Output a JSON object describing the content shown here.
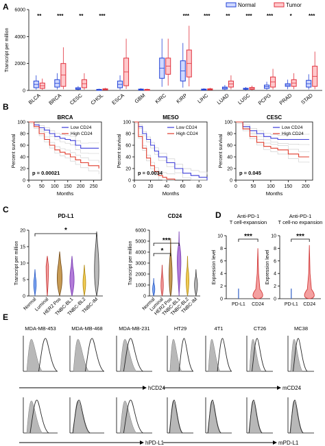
{
  "panels": {
    "A": {
      "letter": "A",
      "ylabel": "Transcript per million",
      "yticks": [
        "0",
        "2000",
        "4000",
        "6000"
      ],
      "legend": [
        {
          "name": "Normal",
          "color": "#1f3fd6"
        },
        {
          "name": "Tumor",
          "color": "#e0303c"
        }
      ],
      "categories": [
        "BLCA",
        "BRCA",
        "CESC",
        "CHOL",
        "ESCA",
        "GBM",
        "KIRC",
        "KIRP",
        "LIHC",
        "LUAD",
        "LUSC",
        "PCPG",
        "PRAD",
        "STAD"
      ],
      "significance": [
        "**",
        "***",
        "**",
        "***",
        "",
        "",
        "",
        "***",
        "***",
        "**",
        "***",
        "***",
        "*",
        "***"
      ]
    },
    "B": {
      "letter": "B",
      "plots": [
        {
          "title": "BRCA",
          "xticks": [
            "0",
            "50",
            "100",
            "150",
            "200",
            "250"
          ],
          "p": "p = 0.00021"
        },
        {
          "title": "MESO",
          "xticks": [
            "0",
            "20",
            "40",
            "60",
            "80"
          ],
          "p": "p = 0.0034"
        },
        {
          "title": "CESC",
          "xticks": [
            "0",
            "50",
            "100",
            "150",
            "200"
          ],
          "p": "p = 0.045"
        }
      ],
      "yticks": [
        "0",
        "20",
        "40",
        "60",
        "80",
        "100"
      ],
      "ylabel": "Percent survival",
      "xlabel": "Months",
      "legend": [
        "Low CD24",
        "High CD24"
      ]
    },
    "C": {
      "letter": "C",
      "plots": [
        {
          "title": "PD-L1",
          "yticks": [
            "0",
            "5",
            "10",
            "15",
            "20"
          ],
          "sig": [
            "*"
          ]
        },
        {
          "title": "CD24",
          "yticks": [
            "0",
            "1000",
            "2000",
            "3000",
            "4000",
            "5000",
            "6000"
          ],
          "sig": [
            "***",
            "*"
          ]
        }
      ],
      "ylabel": "Transcript per million",
      "categories": [
        "Normal",
        "Luminal",
        "HER2 Pos",
        "TNBC-BL1",
        "TNBC-BL2",
        "TNBC-IM"
      ]
    },
    "D": {
      "letter": "D",
      "plots": [
        {
          "title_line1": "Anti-PD-1",
          "title_line2": "T cell-expansion",
          "sig": "***"
        },
        {
          "title_line1": "Anti-PD-1",
          "title_line2": "T cell-no expansion",
          "sig": "***"
        }
      ],
      "ylabel": "Expression level",
      "yticks": [
        "0",
        "2",
        "4",
        "6",
        "8",
        "10"
      ],
      "categories": [
        "PD-L1",
        "CD24"
      ]
    },
    "E": {
      "letter": "E",
      "cells": [
        "MDA-MB-453",
        "MDA-MB-468",
        "MDA-MB-231",
        "HT29",
        "4T1",
        "CT26",
        "MC38"
      ],
      "row1_markers": [
        "hCD24",
        "mCD24"
      ],
      "row2_markers": [
        "hPD-L1",
        "mPD-L1"
      ]
    }
  },
  "chart_data": [
    {
      "type": "bar",
      "title": "",
      "xlabel": "",
      "ylabel": "Transcript per million",
      "ylim": [
        0,
        6000
      ],
      "categories": [
        "BLCA",
        "BRCA",
        "CESC",
        "CHOL",
        "ESCA",
        "GBM",
        "KIRC",
        "KIRP",
        "LIHC",
        "LUAD",
        "LUSC",
        "PCPG",
        "PRAD",
        "STAD"
      ],
      "series": [
        {
          "name": "Normal",
          "values": [
            [
              200,
              700
            ],
            [
              250,
              800
            ],
            [
              80,
              200
            ],
            [
              30,
              80
            ],
            [
              200,
              700
            ],
            [
              30,
              100
            ],
            [
              900,
              2400
            ],
            [
              700,
              2200
            ],
            [
              30,
              100
            ],
            [
              100,
              250
            ],
            [
              80,
              160
            ],
            [
              150,
              400
            ],
            [
              300,
              500
            ],
            [
              250,
              750
            ]
          ]
        },
        {
          "name": "Tumor",
          "values": [
            [
              150,
              550
            ],
            [
              300,
              2000
            ],
            [
              200,
              800
            ],
            [
              40,
              120
            ],
            [
              350,
              2400
            ],
            [
              20,
              80
            ],
            [
              1200,
              2400
            ],
            [
              1000,
              3000
            ],
            [
              50,
              120
            ],
            [
              250,
              700
            ],
            [
              80,
              220
            ],
            [
              250,
              1000
            ],
            [
              300,
              800
            ],
            [
              300,
              1800
            ]
          ]
        }
      ],
      "grid": false,
      "legend": "top-right"
    },
    {
      "type": "line",
      "title": "BRCA",
      "xlabel": "Months",
      "ylabel": "Percent survival",
      "xlim": [
        0,
        280
      ],
      "ylim": [
        0,
        100
      ],
      "series": [
        {
          "name": "Low CD24",
          "x": [
            0,
            20,
            40,
            60,
            80,
            100,
            120,
            140,
            160,
            180,
            200,
            230,
            270
          ],
          "y": [
            100,
            95,
            90,
            86,
            80,
            75,
            72,
            70,
            68,
            60,
            55,
            55,
            55
          ]
        },
        {
          "name": "High CD24",
          "x": [
            0,
            20,
            40,
            60,
            80,
            100,
            120,
            140,
            160,
            180,
            200,
            230,
            270
          ],
          "y": [
            100,
            92,
            80,
            70,
            60,
            52,
            48,
            45,
            40,
            35,
            30,
            25,
            20
          ]
        }
      ],
      "legend": "top-right"
    },
    {
      "type": "line",
      "title": "MESO",
      "xlabel": "Months",
      "ylabel": "Percent survival",
      "xlim": [
        0,
        90
      ],
      "ylim": [
        0,
        100
      ],
      "series": [
        {
          "name": "Low CD24",
          "x": [
            0,
            5,
            10,
            15,
            20,
            25,
            30,
            40,
            50,
            60,
            70,
            80,
            90
          ],
          "y": [
            100,
            92,
            80,
            70,
            60,
            50,
            40,
            30,
            20,
            12,
            8,
            5,
            0
          ]
        },
        {
          "name": "High CD24",
          "x": [
            0,
            5,
            10,
            15,
            20,
            25,
            30,
            35,
            40,
            50
          ],
          "y": [
            100,
            75,
            55,
            38,
            25,
            15,
            8,
            5,
            2,
            0
          ]
        }
      ],
      "legend": "top-right"
    },
    {
      "type": "line",
      "title": "CESC",
      "xlabel": "Months",
      "ylabel": "Percent survival",
      "xlim": [
        0,
        220
      ],
      "ylim": [
        0,
        100
      ],
      "series": [
        {
          "name": "Low CD24",
          "x": [
            0,
            20,
            40,
            60,
            80,
            100,
            120,
            150,
            180,
            210
          ],
          "y": [
            100,
            92,
            85,
            80,
            75,
            72,
            70,
            70,
            70,
            70
          ]
        },
        {
          "name": "High CD24",
          "x": [
            0,
            20,
            40,
            60,
            80,
            100,
            120,
            150,
            180,
            210
          ],
          "y": [
            100,
            88,
            75,
            65,
            58,
            55,
            52,
            45,
            40,
            40
          ]
        }
      ],
      "legend": "top-right"
    }
  ]
}
